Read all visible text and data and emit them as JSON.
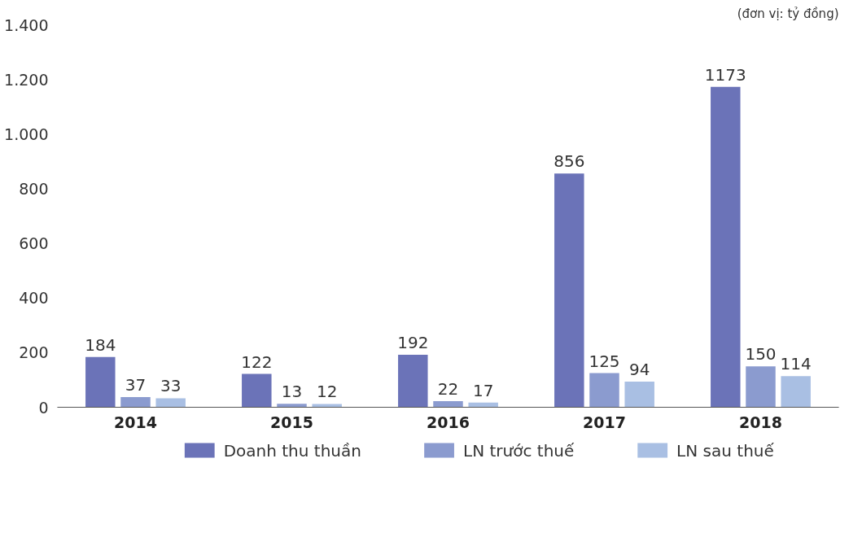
{
  "chart_data": {
    "type": "bar",
    "categories": [
      "2014",
      "2015",
      "2016",
      "2017",
      "2018"
    ],
    "series": [
      {
        "name": "Doanh thu thuần",
        "color": "#6b73b8",
        "values": [
          184,
          122,
          192,
          856,
          1173
        ]
      },
      {
        "name": "LN trước thuế",
        "color": "#8b9bcf",
        "values": [
          37,
          13,
          22,
          125,
          150
        ]
      },
      {
        "name": "LN sau thuế",
        "color": "#a9bfe3",
        "values": [
          33,
          12,
          17,
          94,
          114
        ]
      }
    ],
    "ylim": [
      0,
      1400
    ],
    "yticks": [
      0,
      200,
      400,
      600,
      800,
      {
        "value": 1000,
        "label": "1.000"
      },
      {
        "value": 1200,
        "label": "1.200"
      },
      {
        "value": 1400,
        "label": "1.400"
      }
    ],
    "annotations": [
      "(đơn vị: tỷ đồng)"
    ],
    "data_labels": true,
    "grid": false,
    "legend": "bottom"
  }
}
